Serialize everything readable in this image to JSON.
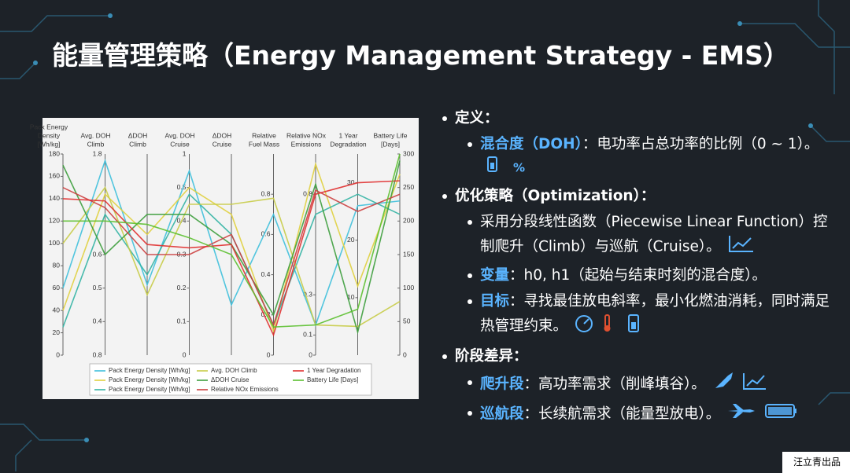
{
  "title": "能量管理策略（Energy Management Strategy - EMS）",
  "chart_data": {
    "type": "parallel",
    "axes": [
      {
        "title": [
          "Pack Energy",
          "Density",
          "[Wh/kg]"
        ],
        "ylim": [
          0,
          180
        ],
        "yticks": [
          0,
          20,
          40,
          60,
          80,
          100,
          120,
          140,
          160,
          180
        ]
      },
      {
        "title": [
          "Avg. DOH",
          "Climb"
        ],
        "ylim": [
          0.3,
          0.9
        ],
        "ylim_labels": [
          "0.8",
          "1.8"
        ],
        "yticks": [
          0.4,
          0.5,
          0.6
        ]
      },
      {
        "title": [
          "ΔDOH",
          "Climb"
        ],
        "ylim": [
          0,
          1
        ],
        "yticks": []
      },
      {
        "title": [
          "Avg. DOH",
          "Cruise"
        ],
        "ylim": [
          0,
          0.6
        ],
        "ylim_labels": [
          "0",
          "1"
        ],
        "yticks": [
          0.1,
          0.2,
          0.3,
          0.4,
          0.5
        ]
      },
      {
        "title": [
          "ΔDOH",
          "Cruise"
        ],
        "ylim": [
          0,
          1
        ],
        "yticks": []
      },
      {
        "title": [
          "Relative",
          "Fuel Mass"
        ],
        "ylim": [
          0,
          1
        ],
        "yticks": [
          0,
          0.2,
          0.4,
          0.6,
          0.8
        ]
      },
      {
        "title": [
          "Relative NOx",
          "Emissions"
        ],
        "ylim": [
          0,
          1
        ],
        "yticks": [
          0,
          0.1,
          0.3,
          0.8
        ]
      },
      {
        "title": [
          "1 Year",
          "Degradation"
        ],
        "ylim": [
          0,
          35
        ],
        "yticks": [
          10,
          20,
          30
        ]
      },
      {
        "title": [
          "Battery Life",
          "[Days]"
        ],
        "ylim": [
          0,
          300
        ],
        "yticks": [
          0,
          50,
          100,
          150,
          200,
          250,
          300
        ]
      }
    ],
    "series": [
      {
        "name": "Pack Energy Density [Wh/kg]",
        "color": "#3fc0dc",
        "values": [
          60,
          0.88,
          0.35,
          0.55,
          0.25,
          0.7,
          0.15,
          26,
          230
        ]
      },
      {
        "name": "Pack Energy Density [Wh/kg]",
        "color": "#e0d040",
        "values": [
          40,
          0.78,
          0.6,
          0.5,
          0.7,
          0.12,
          0.95,
          12,
          270
        ]
      },
      {
        "name": "Pack Energy Density [Wh/kg]",
        "color": "#34b4a4",
        "values": [
          25,
          0.72,
          0.4,
          0.48,
          0.6,
          0.15,
          0.7,
          28,
          210
        ]
      },
      {
        "name": "Avg. DOH Climb",
        "color": "#c8cc48",
        "values": [
          100,
          0.8,
          0.3,
          0.45,
          0.75,
          0.78,
          0.15,
          5,
          80
        ]
      },
      {
        "name": "ΔDOH Cruise",
        "color": "#3e9e3e",
        "values": [
          170,
          0.6,
          0.7,
          0.42,
          0.55,
          0.2,
          0.85,
          4,
          290
        ]
      },
      {
        "name": "Relative NOx Emissions",
        "color": "#cc4040",
        "values": [
          150,
          0.74,
          0.5,
          0.3,
          0.6,
          0.15,
          0.82,
          25,
          240
        ]
      },
      {
        "name": "1 Year Degradation",
        "color": "#e03030",
        "values": [
          140,
          0.76,
          0.55,
          0.32,
          0.55,
          0.1,
          0.8,
          30,
          260
        ]
      },
      {
        "name": "Battery Life [Days]",
        "color": "#5cc030",
        "values": [
          120,
          0.7,
          0.65,
          0.35,
          0.5,
          0.14,
          0.15,
          8,
          300
        ]
      }
    ]
  },
  "sections": [
    {
      "head": "定义：",
      "items": [
        {
          "label": "混合度（DOH）",
          "text": "：电功率占总功率的比例（0 ~ 1）。",
          "icon_text": "%"
        }
      ]
    },
    {
      "head": "优化策略（Optimization）：",
      "items": [
        {
          "text": "采用分段线性函数（Piecewise Linear Function）控制爬升（Climb）与巡航（Cruise）。"
        },
        {
          "label": "变量",
          "text": "：h0, h1（起始与结束时刻的混合度）。"
        },
        {
          "label": "目标",
          "text": "：寻找最佳放电斜率，最小化燃油消耗，同时满足热管理约束。"
        }
      ]
    },
    {
      "head": "阶段差异：",
      "items": [
        {
          "label": "爬升段",
          "text": "：高功率需求（削峰填谷）。"
        },
        {
          "label": "巡航段",
          "text": "：长续航需求（能量型放电）。"
        }
      ]
    }
  ],
  "footer": "汪立青出品"
}
